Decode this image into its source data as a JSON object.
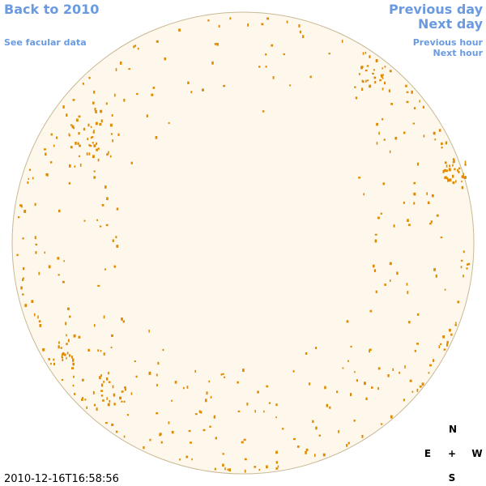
{
  "header": {
    "back_link": "Back to 2010",
    "facular_link": "See facular data",
    "previous_day": "Previous day",
    "next_day": "Next day",
    "previous_hour": "Previous hour",
    "next_hour": "Next hour"
  },
  "compass": {
    "north": "N",
    "east": "E",
    "center": "+",
    "west": "W",
    "south": "S"
  },
  "timestamp": "2010-12-16T16:58:56"
}
